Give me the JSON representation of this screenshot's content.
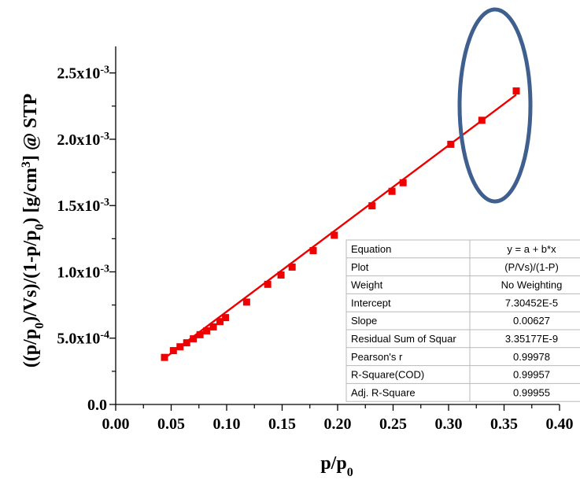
{
  "chart_data": {
    "type": "scatter",
    "xlabel": "p/p0",
    "ylabel": "((p/p0)/Vs)/(1-p/p0) [g/cm3] @ STP",
    "xlim": [
      0.0,
      0.4
    ],
    "ylim": [
      0.0,
      0.0027
    ],
    "x_ticks": [
      "0.00",
      "0.05",
      "0.10",
      "0.15",
      "0.20",
      "0.25",
      "0.30",
      "0.35",
      "0.40"
    ],
    "y_ticks": [
      {
        "value": 0.0,
        "mantissa": "0.0",
        "exponent": ""
      },
      {
        "value": 0.0005,
        "mantissa": "5.0x10",
        "exponent": "-4"
      },
      {
        "value": 0.001,
        "mantissa": "1.0x10",
        "exponent": "-3"
      },
      {
        "value": 0.0015,
        "mantissa": "1.5x10",
        "exponent": "-3"
      },
      {
        "value": 0.002,
        "mantissa": "2.0x10",
        "exponent": "-3"
      },
      {
        "value": 0.0025,
        "mantissa": "2.5x10",
        "exponent": "-3"
      }
    ],
    "series": [
      {
        "type": "scatter",
        "color": "#ee0000",
        "x": [
          0.044,
          0.052,
          0.058,
          0.064,
          0.07,
          0.076,
          0.082,
          0.088,
          0.094,
          0.099,
          0.118,
          0.137,
          0.149,
          0.159,
          0.178,
          0.197,
          0.231,
          0.249,
          0.259,
          0.302,
          0.33,
          0.361
        ],
        "y": [
          0.000355,
          0.000406,
          0.000435,
          0.000465,
          0.000495,
          0.000526,
          0.000555,
          0.000585,
          0.000625,
          0.000655,
          0.000772,
          0.000906,
          0.000976,
          0.001036,
          0.00116,
          0.001276,
          0.001498,
          0.001607,
          0.001672,
          0.001962,
          0.002143,
          0.002364
        ]
      },
      {
        "type": "line",
        "color": "#ee0000",
        "x": [
          0.044,
          0.361
        ],
        "y": [
          0.000349,
          0.002336
        ]
      }
    ],
    "highlight_color": "#3f5f8f",
    "stats_table": [
      [
        "Equation",
        "y = a + b*x"
      ],
      [
        "Plot",
        "(P/Vs)/(1-P)"
      ],
      [
        "Weight",
        "No Weighting"
      ],
      [
        "Intercept",
        "7.30452E-5"
      ],
      [
        "Slope",
        "0.00627"
      ],
      [
        "Residual Sum of Squar",
        "3.35177E-9"
      ],
      [
        "Pearson's r",
        "0.99978"
      ],
      [
        "R-Square(COD)",
        "0.99957"
      ],
      [
        "Adj. R-Square",
        "0.99955"
      ]
    ]
  }
}
